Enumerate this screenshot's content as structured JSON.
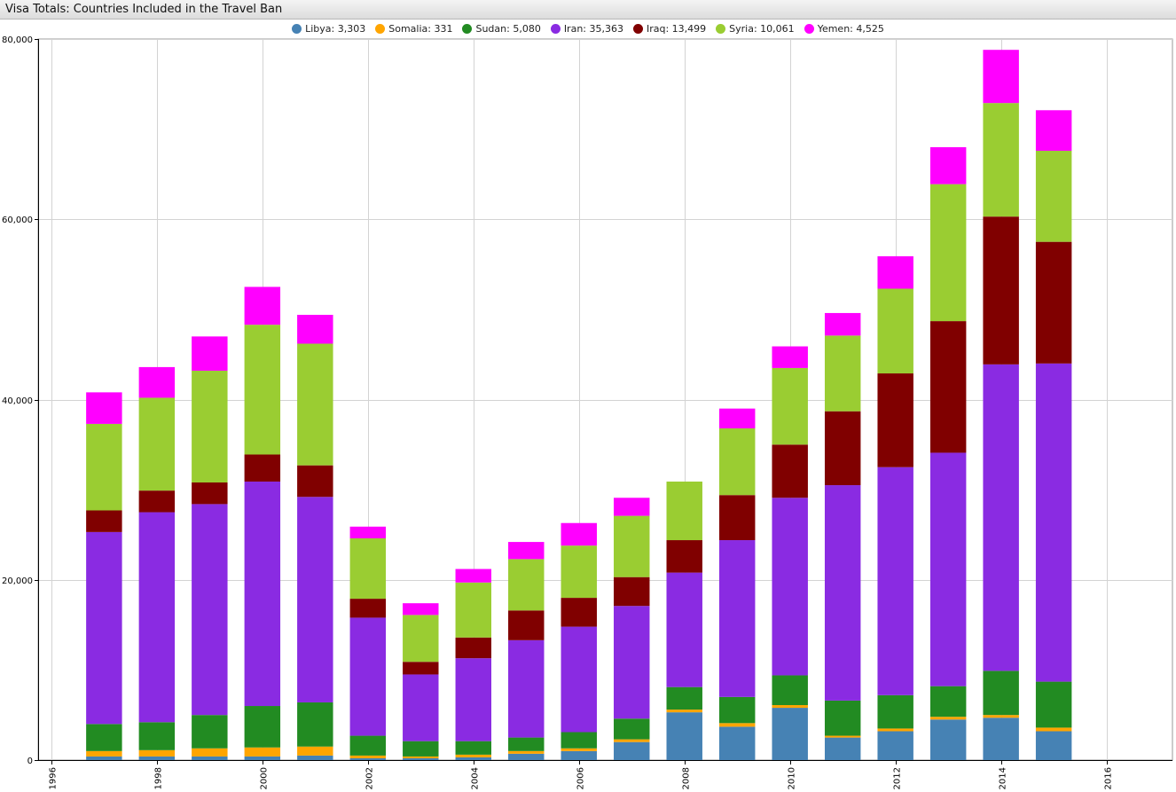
{
  "window": {
    "title": "Visa Totals: Countries Included in the Travel Ban"
  },
  "chart_data": {
    "type": "bar",
    "stacked": true,
    "title": "Visa Totals: Countries Included in the Travel Ban",
    "xlabel": "",
    "ylabel": "",
    "xlim": [
      1995.75,
      2017.25
    ],
    "ylim": [
      0,
      80000
    ],
    "grid": true,
    "legend_position": "top-center",
    "x_ticks": [
      "1996",
      "1998",
      "2000",
      "2002",
      "2004",
      "2006",
      "2008",
      "2010",
      "2012",
      "2014",
      "2016"
    ],
    "y_ticks": [
      "0",
      "20,000",
      "40,000",
      "60,000",
      "80,000"
    ],
    "x": [
      1997,
      1998,
      1999,
      2000,
      2001,
      2002,
      2003,
      2004,
      2005,
      2006,
      2007,
      2008,
      2009,
      2010,
      2011,
      2012,
      2013,
      2014,
      2015
    ],
    "series": [
      {
        "name": "Libya",
        "legend_label": "Libya: 3,303",
        "color": "#4682b4",
        "values": [
          400,
          400,
          400,
          400,
          500,
          200,
          200,
          300,
          700,
          1000,
          2000,
          5300,
          3700,
          5800,
          2500,
          3200,
          4500,
          4700,
          3200
        ]
      },
      {
        "name": "Somalia",
        "legend_label": "Somalia: 331",
        "color": "#ffa500",
        "values": [
          600,
          700,
          900,
          1000,
          1000,
          300,
          200,
          300,
          300,
          300,
          300,
          300,
          400,
          300,
          200,
          300,
          300,
          300,
          400
        ]
      },
      {
        "name": "Sudan",
        "legend_label": "Sudan: 5,080",
        "color": "#228b22",
        "values": [
          3000,
          3100,
          3700,
          4600,
          4900,
          2200,
          1700,
          1500,
          1500,
          1800,
          2300,
          2500,
          2900,
          3300,
          3900,
          3700,
          3400,
          4900,
          5100
        ]
      },
      {
        "name": "Iran",
        "legend_label": "Iran: 35,363",
        "color": "#8a2be2",
        "values": [
          21300,
          23300,
          23400,
          24900,
          22800,
          13100,
          7400,
          9200,
          10800,
          11700,
          12500,
          12700,
          17400,
          19700,
          23900,
          25300,
          25900,
          34000,
          35300
        ]
      },
      {
        "name": "Iraq",
        "legend_label": "Iraq: 13,499",
        "color": "#800000",
        "values": [
          2400,
          2400,
          2400,
          3000,
          3500,
          2100,
          1400,
          2300,
          3300,
          3200,
          3200,
          3600,
          5000,
          5900,
          8200,
          10400,
          14600,
          16400,
          13500
        ]
      },
      {
        "name": "Syria",
        "legend_label": "Syria: 10,061",
        "color": "#9acd32",
        "values": [
          9600,
          10300,
          12400,
          14400,
          13500,
          6700,
          5200,
          6100,
          5700,
          5800,
          6800,
          6500,
          7400,
          8500,
          8400,
          9400,
          15200,
          12600,
          10100
        ]
      },
      {
        "name": "Yemen",
        "legend_label": "Yemen: 4,525",
        "color": "#ff00ff",
        "values": [
          3500,
          3400,
          3800,
          4200,
          3200,
          1300,
          1300,
          1500,
          1900,
          2500,
          2000,
          0,
          2200,
          2400,
          2500,
          3600,
          4100,
          5900,
          4500
        ]
      }
    ]
  }
}
